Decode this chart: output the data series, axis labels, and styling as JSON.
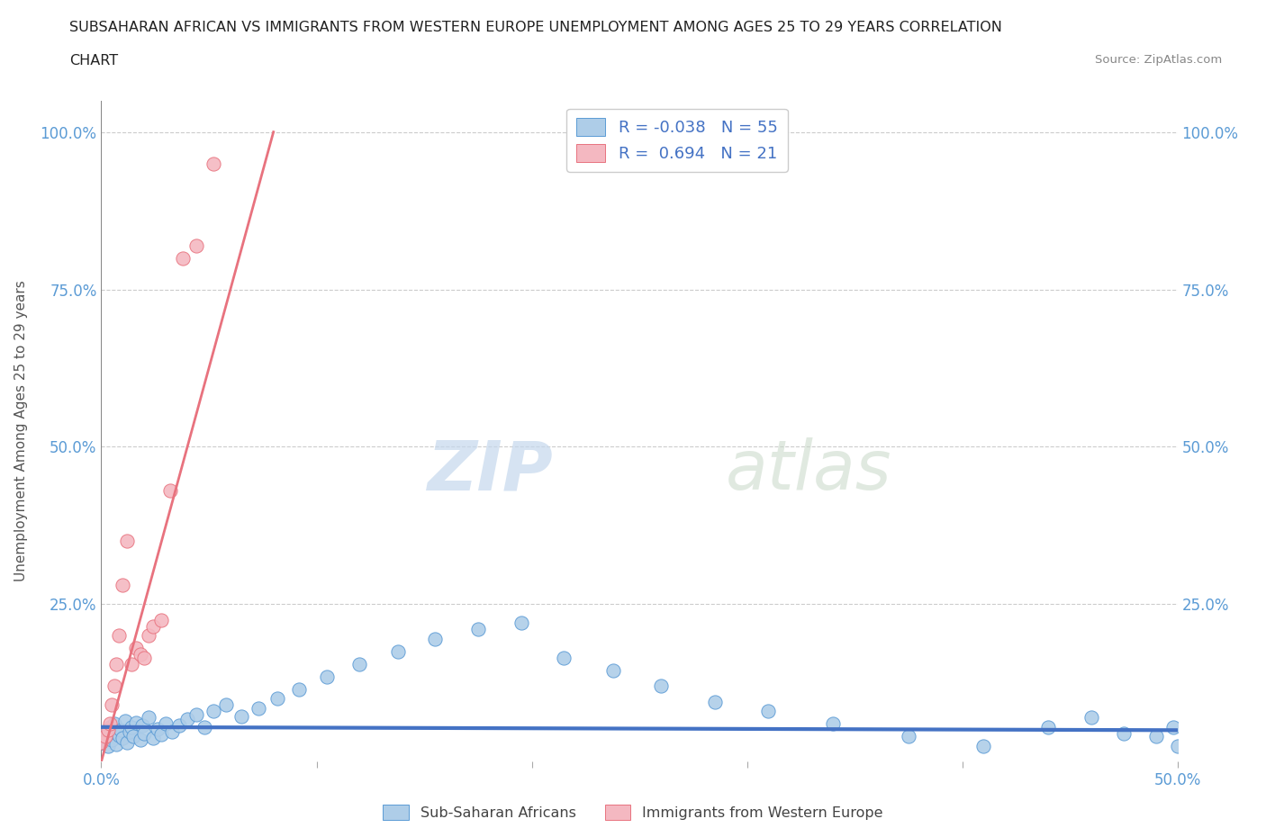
{
  "title_line1": "SUBSAHARAN AFRICAN VS IMMIGRANTS FROM WESTERN EUROPE UNEMPLOYMENT AMONG AGES 25 TO 29 YEARS CORRELATION",
  "title_line2": "CHART",
  "source": "Source: ZipAtlas.com",
  "ylabel": "Unemployment Among Ages 25 to 29 years",
  "xmin": 0.0,
  "xmax": 0.5,
  "ymin": 0.0,
  "ymax": 1.05,
  "blue_color": "#aecde8",
  "blue_edge_color": "#5b9bd5",
  "pink_color": "#f4b8c1",
  "pink_edge_color": "#e8727e",
  "blue_trend_color": "#4472c4",
  "pink_trend_color": "#e8727e",
  "tick_color": "#5b9bd5",
  "ylabel_color": "#555555",
  "watermark_color": "#d8e8f0",
  "legend_R1": "R = -0.038   N = 55",
  "legend_R2": "R =  0.694   N = 21",
  "label1": "Sub-Saharan Africans",
  "label2": "Immigrants from Western Europe",
  "blue_scatter_x": [
    0.0,
    0.002,
    0.003,
    0.004,
    0.005,
    0.006,
    0.007,
    0.008,
    0.009,
    0.01,
    0.011,
    0.012,
    0.013,
    0.014,
    0.015,
    0.016,
    0.018,
    0.019,
    0.02,
    0.022,
    0.024,
    0.026,
    0.028,
    0.03,
    0.033,
    0.036,
    0.04,
    0.044,
    0.048,
    0.052,
    0.058,
    0.065,
    0.073,
    0.082,
    0.092,
    0.105,
    0.12,
    0.138,
    0.155,
    0.175,
    0.195,
    0.215,
    0.238,
    0.26,
    0.285,
    0.31,
    0.34,
    0.375,
    0.41,
    0.44,
    0.46,
    0.475,
    0.49,
    0.498,
    0.5
  ],
  "blue_scatter_y": [
    0.03,
    0.045,
    0.025,
    0.055,
    0.035,
    0.06,
    0.028,
    0.042,
    0.05,
    0.038,
    0.065,
    0.03,
    0.048,
    0.055,
    0.04,
    0.062,
    0.035,
    0.058,
    0.045,
    0.07,
    0.038,
    0.052,
    0.043,
    0.06,
    0.048,
    0.058,
    0.068,
    0.075,
    0.055,
    0.08,
    0.09,
    0.072,
    0.085,
    0.1,
    0.115,
    0.135,
    0.155,
    0.175,
    0.195,
    0.21,
    0.22,
    0.165,
    0.145,
    0.12,
    0.095,
    0.08,
    0.06,
    0.04,
    0.025,
    0.055,
    0.07,
    0.045,
    0.04,
    0.055,
    0.025
  ],
  "pink_scatter_x": [
    0.0,
    0.002,
    0.003,
    0.004,
    0.005,
    0.006,
    0.007,
    0.008,
    0.01,
    0.012,
    0.014,
    0.016,
    0.018,
    0.02,
    0.022,
    0.024,
    0.028,
    0.032,
    0.038,
    0.044,
    0.052
  ],
  "pink_scatter_y": [
    0.03,
    0.04,
    0.05,
    0.06,
    0.09,
    0.12,
    0.155,
    0.2,
    0.28,
    0.35,
    0.155,
    0.18,
    0.17,
    0.165,
    0.2,
    0.215,
    0.225,
    0.43,
    0.8,
    0.82,
    0.95
  ],
  "blue_trend_x": [
    0.0,
    0.5
  ],
  "blue_trend_y": [
    0.055,
    0.05
  ],
  "pink_trend_x": [
    0.0,
    0.08
  ],
  "pink_trend_y": [
    0.0,
    1.0
  ]
}
